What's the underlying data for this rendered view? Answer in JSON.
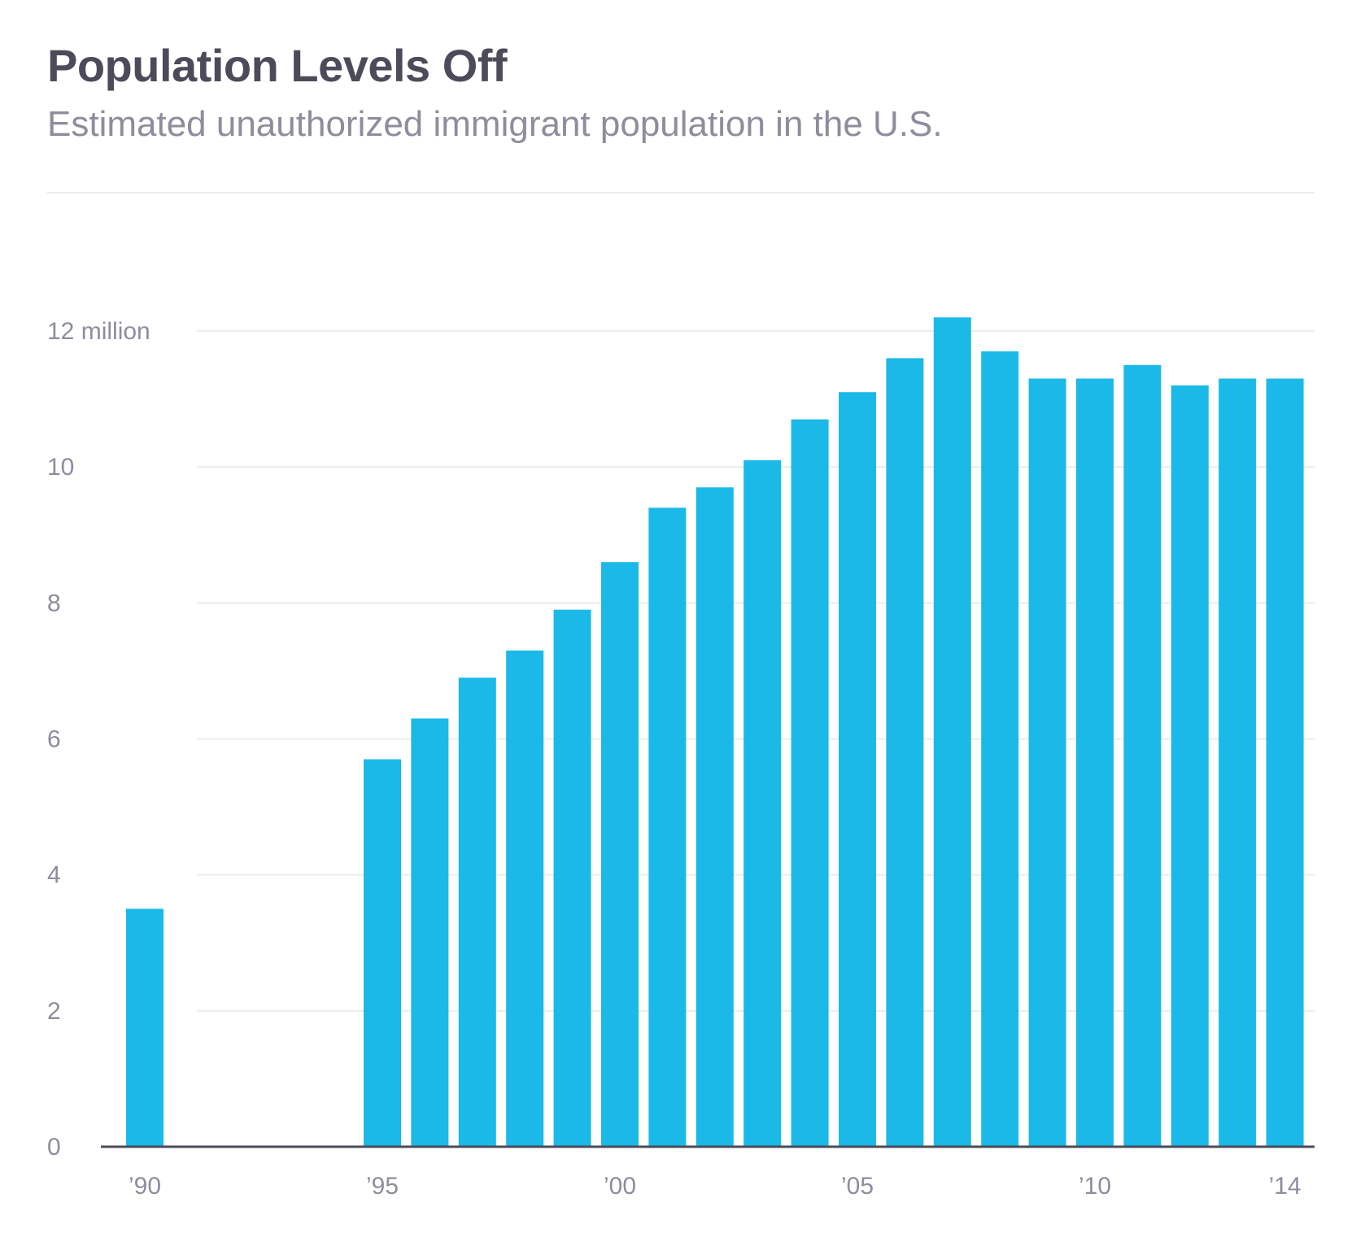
{
  "title": "Population Levels Off",
  "subtitle": "Estimated unauthorized immigrant population in the U.S.",
  "colors": {
    "bar": "#1bb9e8",
    "grid": "#ececec",
    "axis": "#4b4b5a",
    "title": "#4b4b5a",
    "subtitle": "#8f8c9c",
    "tick": "#8f8c9c"
  },
  "chart_data": {
    "type": "bar",
    "title": "Population Levels Off",
    "subtitle": "Estimated unauthorized immigrant population in the U.S.",
    "xlabel": "",
    "ylabel": "",
    "unit": "million",
    "ylim": [
      0,
      12
    ],
    "grid": true,
    "legend": "none",
    "y_ticks": [
      {
        "value": 0,
        "label": "0"
      },
      {
        "value": 2,
        "label": "2"
      },
      {
        "value": 4,
        "label": "4"
      },
      {
        "value": 6,
        "label": "6"
      },
      {
        "value": 8,
        "label": "8"
      },
      {
        "value": 10,
        "label": "10"
      },
      {
        "value": 12,
        "label": "12 million"
      }
    ],
    "x_ticks": [
      {
        "year": 1990,
        "label": "’90"
      },
      {
        "year": 1995,
        "label": "’95"
      },
      {
        "year": 2000,
        "label": "’00"
      },
      {
        "year": 2005,
        "label": "’05"
      },
      {
        "year": 2010,
        "label": "’10"
      },
      {
        "year": 2014,
        "label": "’14"
      }
    ],
    "years": [
      1990,
      1995,
      1996,
      1997,
      1998,
      1999,
      2000,
      2001,
      2002,
      2003,
      2004,
      2005,
      2006,
      2007,
      2008,
      2009,
      2010,
      2011,
      2012,
      2013,
      2014
    ],
    "values": [
      3.5,
      5.7,
      6.3,
      6.9,
      7.3,
      7.9,
      8.6,
      9.4,
      9.7,
      10.1,
      10.7,
      11.1,
      11.6,
      12.2,
      11.7,
      11.3,
      11.3,
      11.5,
      11.2,
      11.3,
      11.3
    ]
  }
}
